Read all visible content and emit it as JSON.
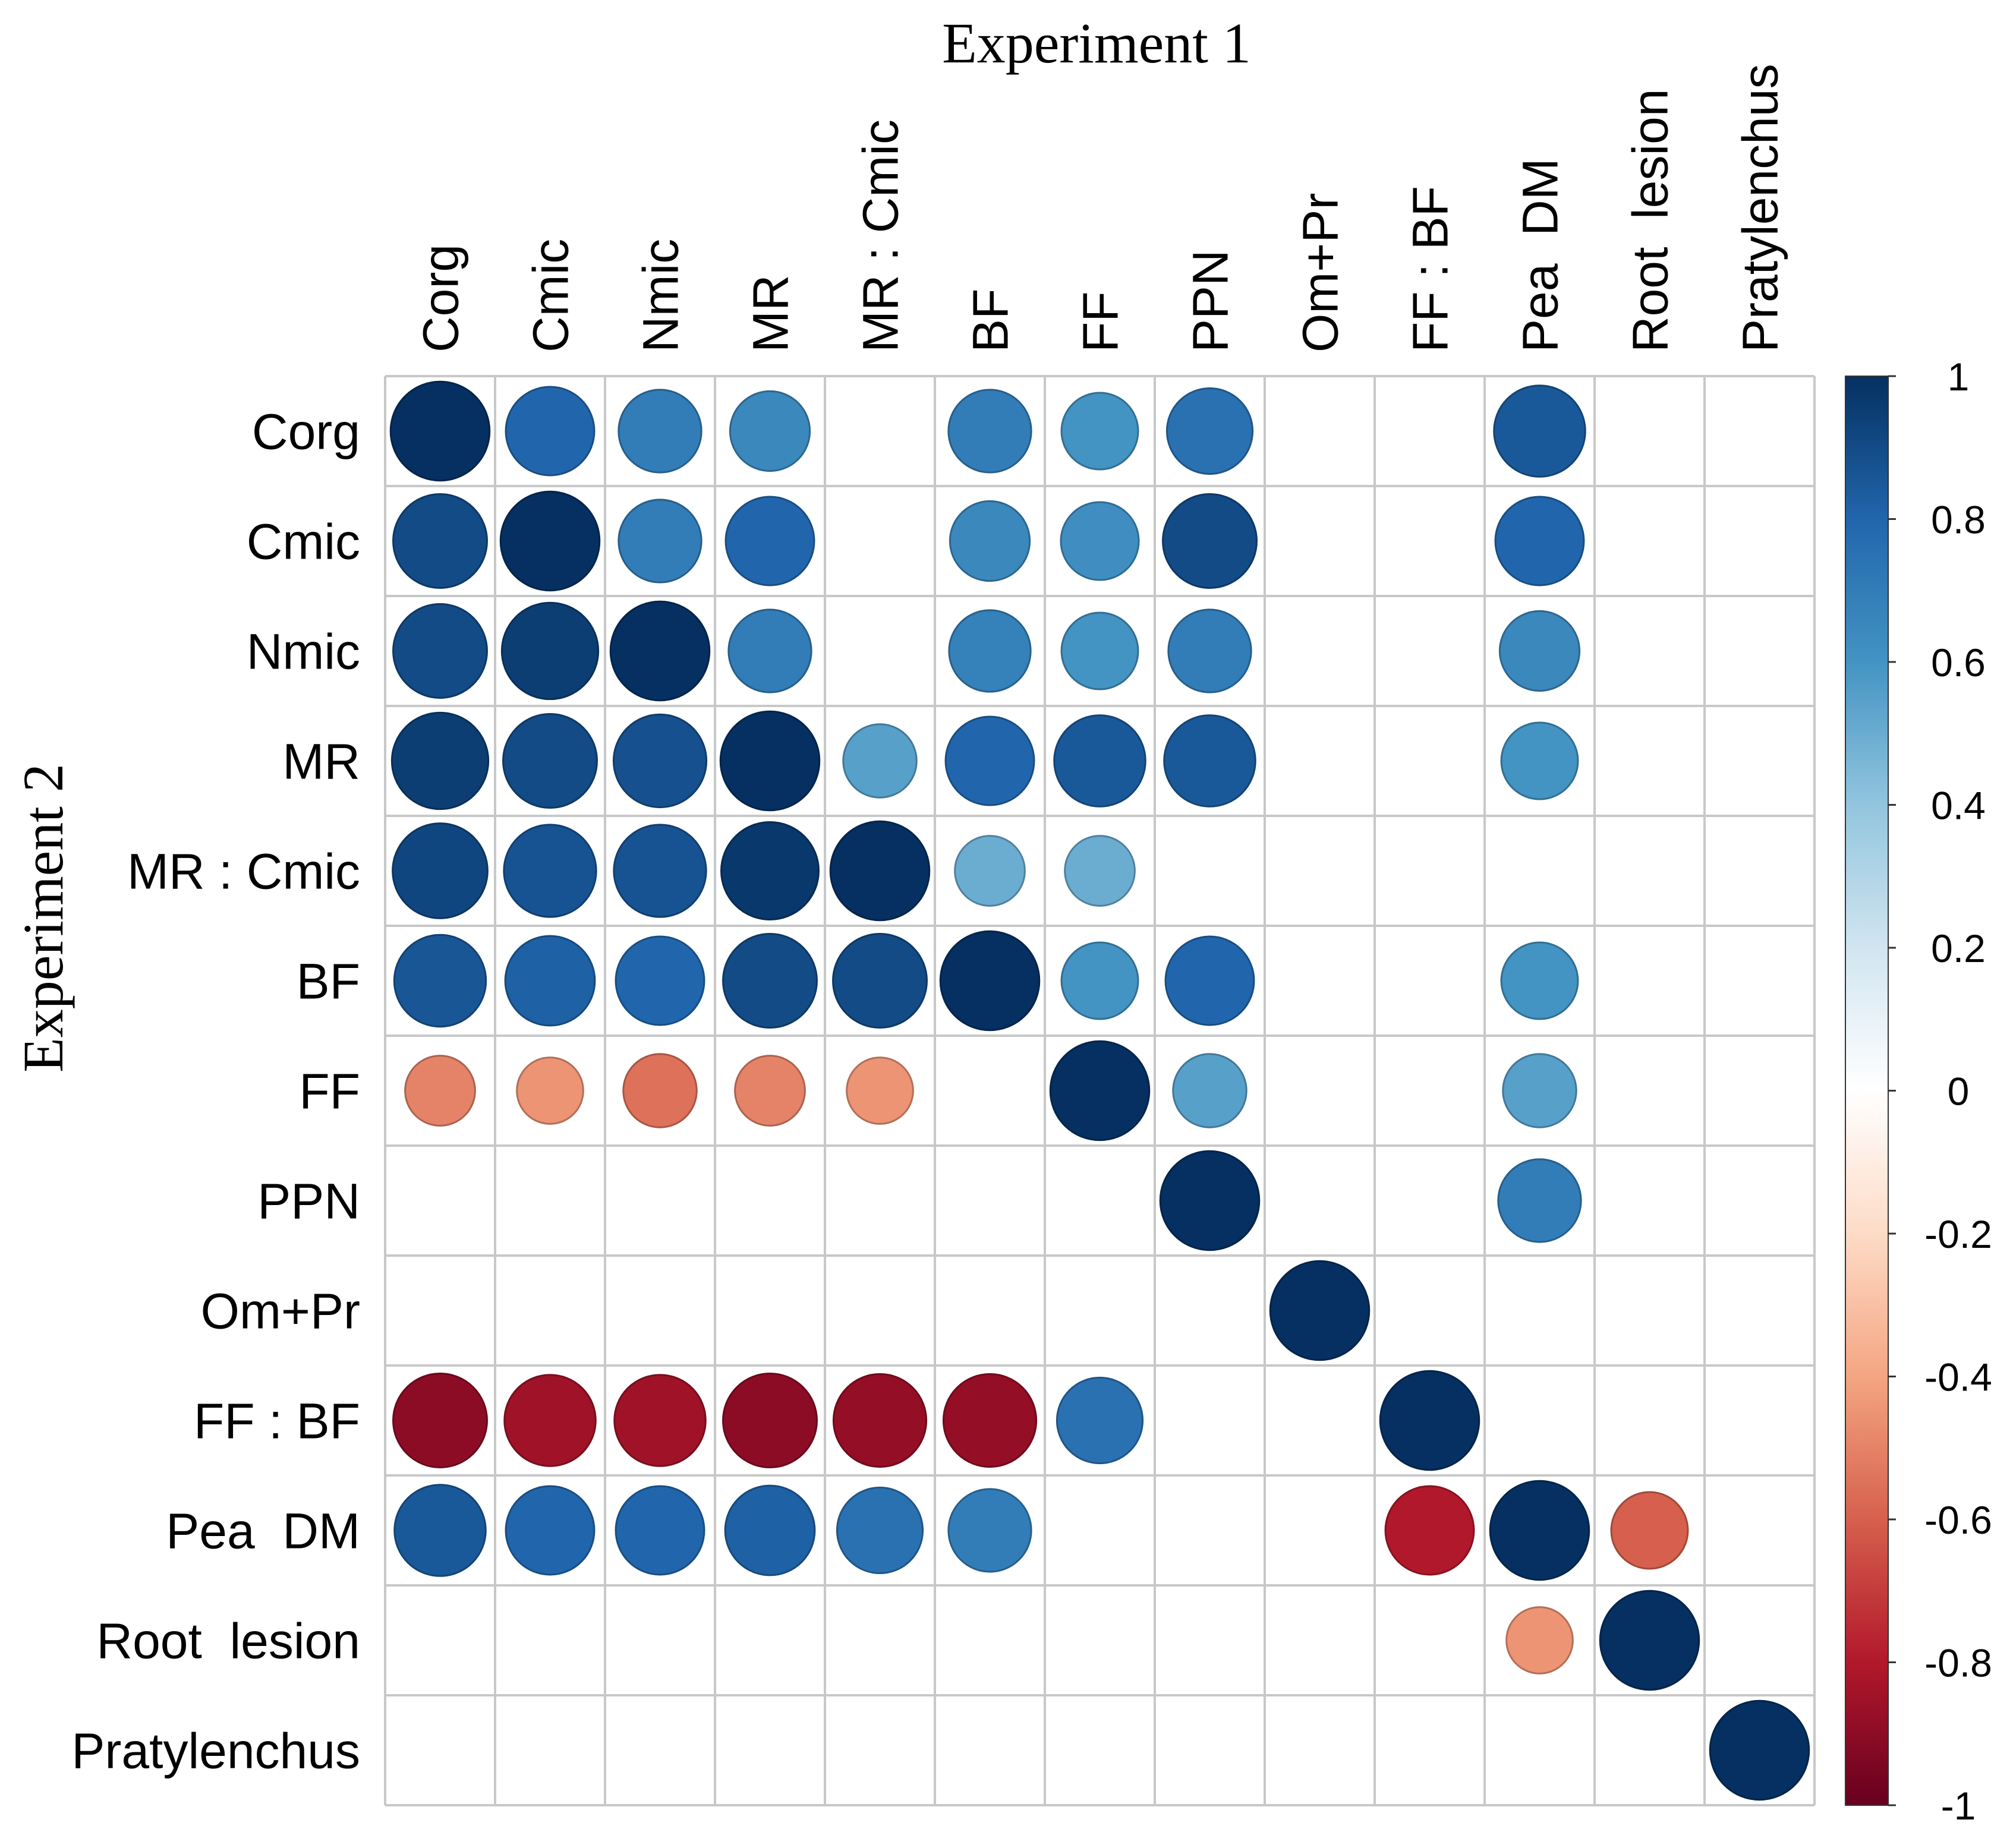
{
  "chart_data": {
    "type": "heatmap",
    "subtype": "correlation-circle-matrix",
    "title_top": "Experiment 1",
    "title_left": "Experiment 2",
    "columns": [
      "Corg",
      "Cmic",
      "Nmic",
      "MR",
      "MR : Cmic",
      "BF",
      "FF",
      "PPN",
      "Om+Pr",
      "FF : BF",
      "Pea  DM",
      "Root  lesion",
      "Pratylenchus"
    ],
    "rows": [
      "Corg",
      "Cmic",
      "Nmic",
      "MR",
      "MR : Cmic",
      "BF",
      "FF",
      "PPN",
      "Om+Pr",
      "FF : BF",
      "Pea  DM",
      "Root  lesion",
      "Pratylenchus"
    ],
    "values": [
      [
        1.0,
        0.8,
        0.7,
        0.65,
        null,
        0.7,
        0.6,
        0.75,
        null,
        null,
        0.85,
        null,
        null
      ],
      [
        0.9,
        1.0,
        0.7,
        0.8,
        null,
        0.65,
        0.62,
        0.9,
        null,
        null,
        0.8,
        null,
        null
      ],
      [
        0.9,
        0.95,
        1.0,
        0.7,
        null,
        0.68,
        0.6,
        0.7,
        null,
        null,
        0.65,
        null,
        null
      ],
      [
        0.95,
        0.9,
        0.88,
        1.0,
        0.55,
        0.8,
        0.85,
        0.85,
        null,
        null,
        0.6,
        null,
        null
      ],
      [
        0.92,
        0.87,
        0.87,
        0.97,
        1.0,
        0.5,
        0.5,
        null,
        null,
        null,
        null,
        null,
        null
      ],
      [
        0.86,
        0.82,
        0.8,
        0.9,
        0.9,
        1.0,
        0.6,
        0.8,
        null,
        null,
        0.6,
        null,
        null
      ],
      [
        -0.5,
        -0.45,
        -0.55,
        -0.5,
        -0.45,
        null,
        1.0,
        0.55,
        null,
        null,
        0.55,
        null,
        null
      ],
      [
        null,
        null,
        null,
        null,
        null,
        null,
        null,
        1.0,
        null,
        null,
        0.7,
        null,
        null
      ],
      [
        null,
        null,
        null,
        null,
        null,
        null,
        null,
        null,
        1.0,
        null,
        null,
        null,
        null
      ],
      [
        -0.9,
        -0.85,
        -0.85,
        -0.9,
        -0.88,
        -0.88,
        0.75,
        null,
        null,
        1.0,
        null,
        null,
        null
      ],
      [
        0.85,
        0.8,
        0.8,
        0.82,
        0.75,
        0.7,
        null,
        null,
        null,
        -0.8,
        1.0,
        -0.6,
        null
      ],
      [
        null,
        null,
        null,
        null,
        null,
        null,
        null,
        null,
        null,
        null,
        -0.45,
        1.0,
        null
      ],
      [
        null,
        null,
        null,
        null,
        null,
        null,
        null,
        null,
        null,
        null,
        null,
        null,
        1.0
      ]
    ],
    "colorbar": {
      "range": [
        -1,
        1
      ],
      "ticks": [
        "1",
        "0.8",
        "0.6",
        "0.4",
        "0.2",
        "0",
        "-0.2",
        "-0.4",
        "-0.6",
        "-0.8",
        "-1"
      ],
      "tick_values": [
        1,
        0.8,
        0.6,
        0.4,
        0.2,
        0,
        -0.2,
        -0.4,
        -0.6,
        -0.8,
        -1
      ],
      "stops": [
        "#67001F",
        "#B2182B",
        "#D6604D",
        "#F4A582",
        "#FDDBC7",
        "#FFFFFF",
        "#D1E5F0",
        "#92C5DE",
        "#4393C3",
        "#2166AC",
        "#053061"
      ]
    },
    "grid": true,
    "legend_placement": "right"
  }
}
